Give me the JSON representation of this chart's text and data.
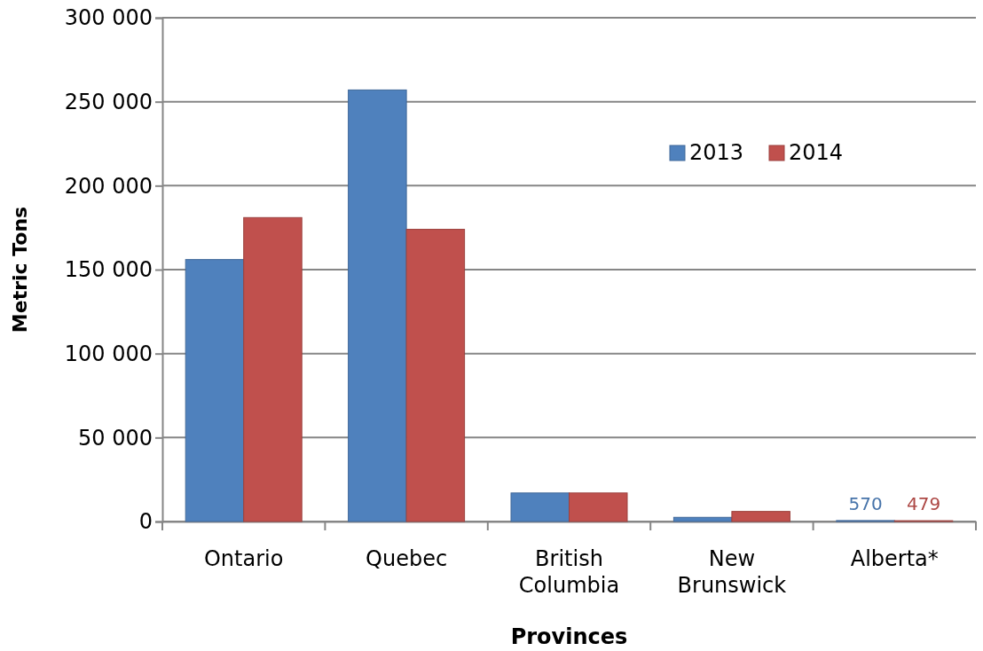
{
  "chart_data": {
    "type": "bar",
    "xlabel": "Provinces",
    "ylabel": "Metric Tons",
    "categories": [
      "Ontario",
      "Quebec",
      "British Columbia",
      "New Brunswick",
      "Alberta*"
    ],
    "series": [
      {
        "name": "2013",
        "color": "#4f81bd",
        "values": [
          156000,
          257000,
          17000,
          2500,
          570
        ],
        "value_labels": [
          null,
          null,
          null,
          null,
          "570"
        ]
      },
      {
        "name": "2014",
        "color": "#c0504d",
        "values": [
          181000,
          174000,
          17000,
          6000,
          479
        ],
        "value_labels": [
          null,
          null,
          null,
          null,
          "479"
        ]
      }
    ],
    "ylim": [
      0,
      300000
    ],
    "yticks": [
      {
        "value": 0,
        "label": "0"
      },
      {
        "value": 50000,
        "label": "50 000"
      },
      {
        "value": 100000,
        "label": "100 000"
      },
      {
        "value": 150000,
        "label": "150 000"
      },
      {
        "value": 200000,
        "label": "200 000"
      },
      {
        "value": 250000,
        "label": "250 000"
      },
      {
        "value": 300000,
        "label": "300 000"
      }
    ],
    "grid": "y",
    "legend": "top right"
  }
}
